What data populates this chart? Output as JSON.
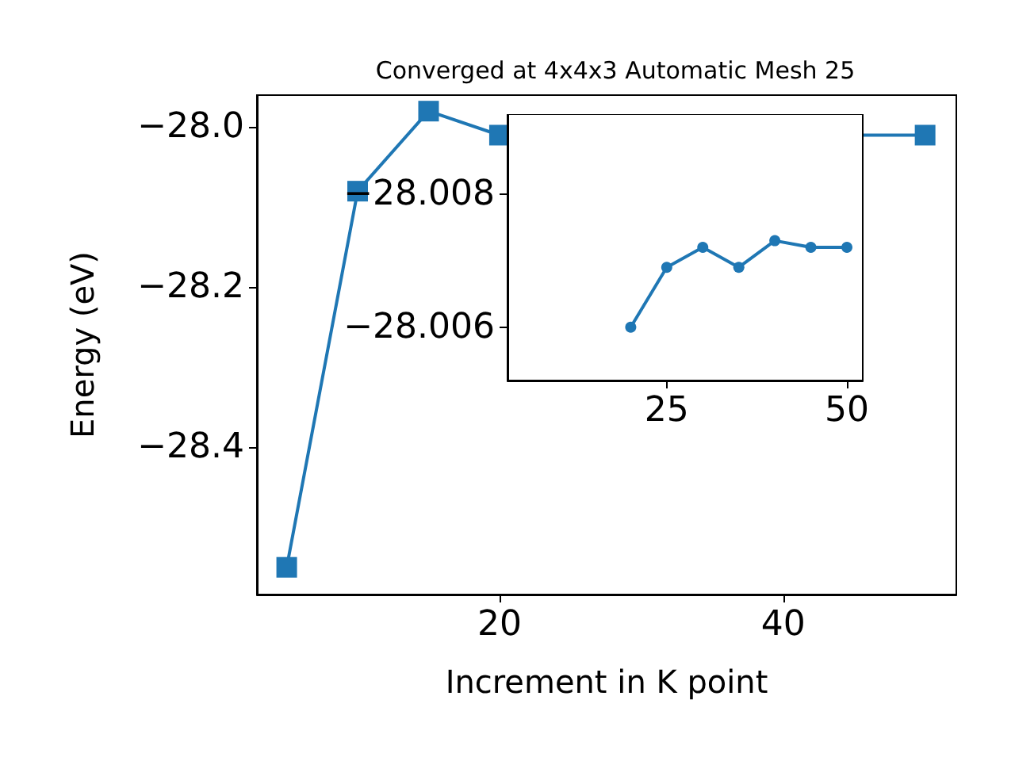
{
  "chart_data": [
    {
      "type": "line",
      "title": "Converged at 4x4x3 Automatic Mesh 25",
      "xlabel": "Increment in K point",
      "ylabel": "Energy (eV)",
      "x": [
        5,
        10,
        15,
        20,
        25,
        30,
        35,
        40,
        45,
        50
      ],
      "series": [
        {
          "color": "#1f77b4",
          "values": [
            -28.55,
            -28.08,
            -27.98,
            -28.01,
            null,
            null,
            null,
            null,
            null,
            -28.01
          ]
        }
      ],
      "marker": "square",
      "xlim": [
        2.9,
        52.2
      ],
      "xticks": [
        20,
        40
      ],
      "ylim": [
        -28.584,
        -27.96
      ],
      "yticks": [
        {
          "value": -28.4,
          "label": "−28.4"
        },
        {
          "value": -28.2,
          "label": "−28.2"
        },
        {
          "value": -28.0,
          "label": "−28.0"
        }
      ],
      "grid": false
    },
    {
      "type": "line",
      "x": [
        20,
        25,
        30,
        35,
        40,
        45,
        50
      ],
      "series": [
        {
          "color": "#1f77b4",
          "values": [
            -28.006,
            -28.0069,
            -28.0072,
            -28.0069,
            -28.0073,
            -28.0072,
            -28.0072
          ]
        }
      ],
      "marker": "circle",
      "xlim": [
        2.9,
        52.2
      ],
      "xticks": [
        25,
        50
      ],
      "ylim": [
        -28.0052,
        -28.0092
      ],
      "yticks": [
        {
          "value": -28.008,
          "label": "−28.008"
        },
        {
          "value": -28.006,
          "label": "−28.006"
        }
      ],
      "grid": false
    }
  ]
}
